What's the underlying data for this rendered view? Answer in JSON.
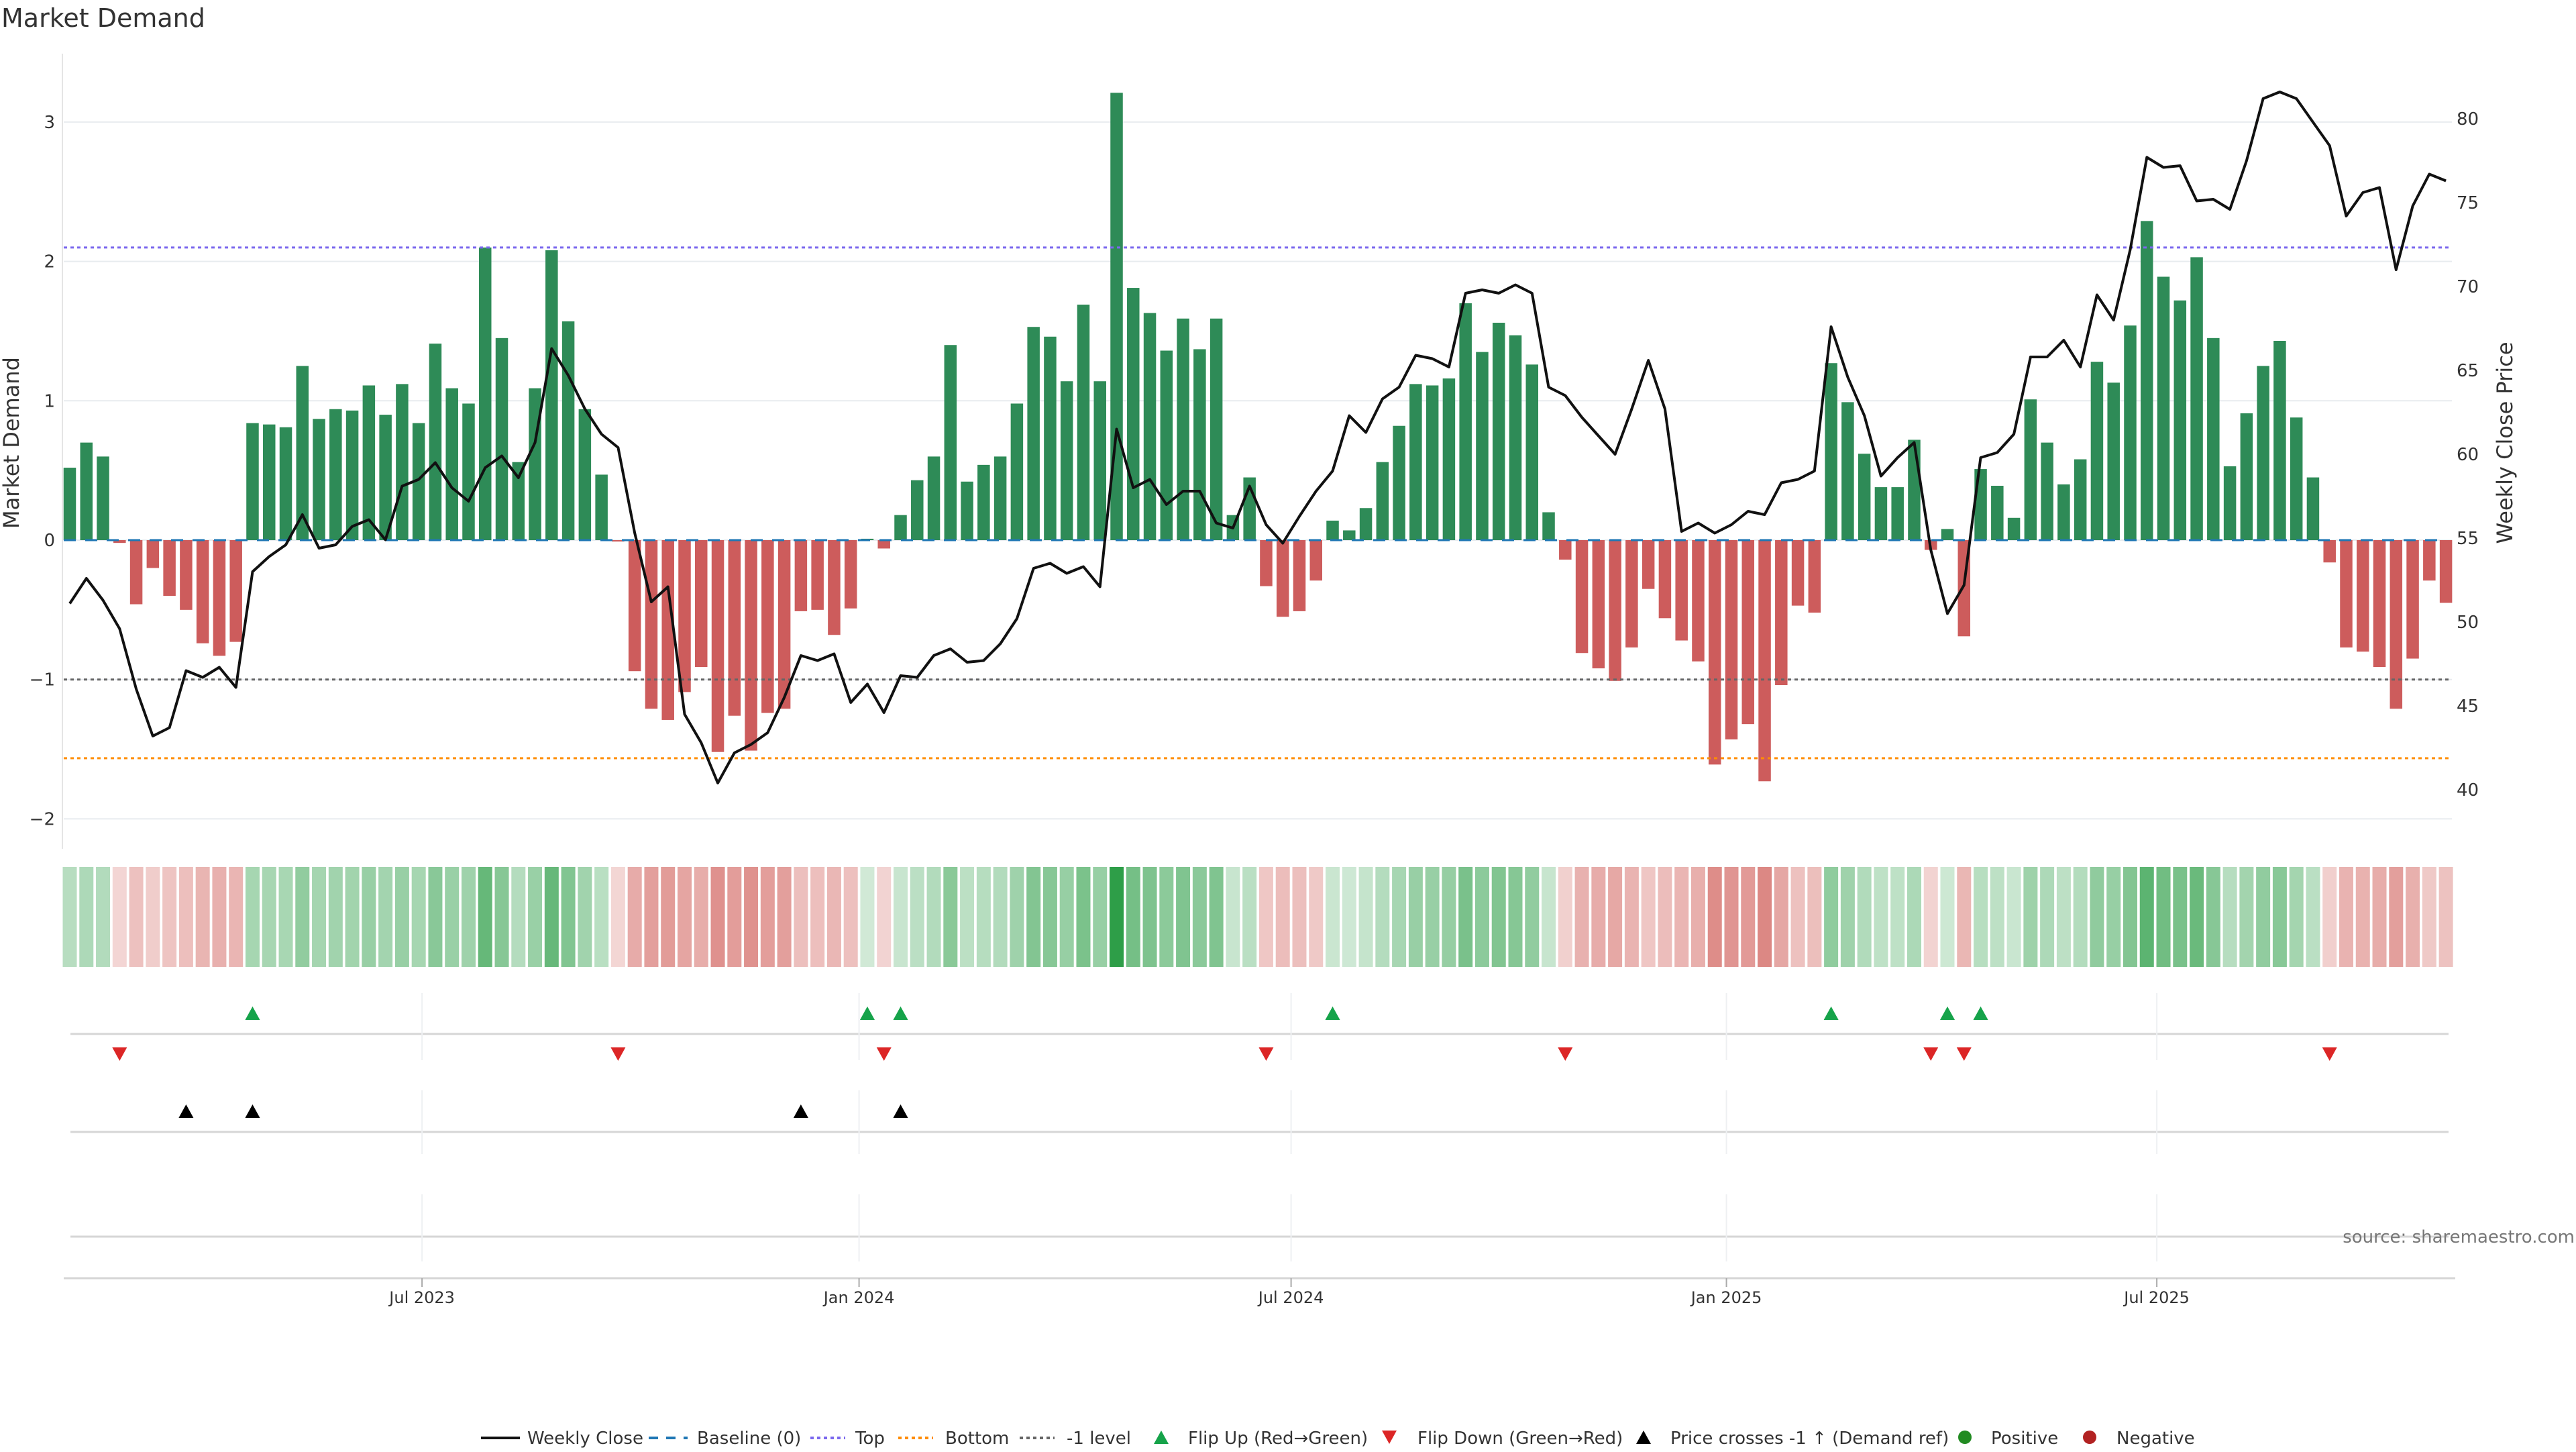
{
  "chart_data": {
    "type": "bar",
    "title": "Market Demand",
    "ylabel": "Market Demand",
    "y2label": "Weekly Close Price",
    "xlabel": "",
    "ylim": [
      -2.35,
      3.35
    ],
    "y2lim": [
      37,
      85
    ],
    "yticks": [
      3,
      2,
      1,
      0,
      -1,
      -2
    ],
    "ytick_labels": [
      "3",
      "2",
      "1",
      "0",
      "−1",
      "−2"
    ],
    "y2ticks": [
      80,
      75,
      70,
      65,
      60,
      55,
      50,
      45,
      40
    ],
    "y2tick_labels": [
      "80",
      "75",
      "70",
      "65",
      "60",
      "55",
      "50",
      "45",
      "40"
    ],
    "xticks": [
      {
        "label": "Jul 2023",
        "week_index": 21.2
      },
      {
        "label": "Jan 2024",
        "week_index": 47.5
      },
      {
        "label": "Jul 2024",
        "week_index": 73.5
      },
      {
        "label": "Jan 2025",
        "week_index": 99.7
      },
      {
        "label": "Jul 2025",
        "week_index": 125.6
      }
    ],
    "grid": true,
    "reference_lines": {
      "baseline": 0,
      "top": 2.1,
      "bottom": -1.565,
      "minus_one": -1
    },
    "colors": {
      "positive": "#2e8b57",
      "negative": "#cd5c5c",
      "price": "#111111",
      "baseline": "#1f77b4",
      "top": "#7b68ee",
      "bottom": "#ff8c00",
      "minus_one": "#666666",
      "flip_up": "#16a34a",
      "flip_down": "#dc2626",
      "cross": "#000000",
      "heat_pos": "#2e9e48",
      "heat_neg": "#c9453f"
    },
    "demand": [
      0.52,
      0.7,
      0.6,
      -0.02,
      -0.46,
      -0.2,
      -0.4,
      -0.5,
      -0.74,
      -0.83,
      -0.73,
      0.84,
      0.83,
      0.81,
      1.25,
      0.87,
      0.94,
      0.93,
      1.11,
      0.9,
      1.12,
      0.84,
      1.41,
      1.09,
      0.98,
      2.1,
      1.45,
      0.56,
      1.09,
      2.08,
      1.57,
      0.94,
      0.47,
      -0.01,
      -0.94,
      -1.21,
      -1.29,
      -1.09,
      -0.91,
      -1.52,
      -1.26,
      -1.51,
      -1.24,
      -1.21,
      -0.51,
      -0.5,
      -0.68,
      -0.49,
      0.01,
      -0.06,
      0.18,
      0.43,
      0.6,
      1.4,
      0.42,
      0.54,
      0.6,
      0.98,
      1.53,
      1.46,
      1.14,
      1.69,
      1.14,
      3.21,
      1.81,
      1.63,
      1.36,
      1.59,
      1.37,
      1.59,
      0.18,
      0.45,
      -0.33,
      -0.55,
      -0.51,
      -0.29,
      0.14,
      0.07,
      0.23,
      0.56,
      0.82,
      1.12,
      1.11,
      1.16,
      1.7,
      1.35,
      1.56,
      1.47,
      1.26,
      0.2,
      -0.14,
      -0.81,
      -0.92,
      -1.01,
      -0.77,
      -0.35,
      -0.56,
      -0.72,
      -0.87,
      -1.61,
      -1.43,
      -1.32,
      -1.73,
      -1.04,
      -0.47,
      -0.52,
      1.27,
      0.99,
      0.62,
      0.38,
      0.38,
      0.72,
      -0.07,
      0.08,
      -0.69,
      0.51,
      0.39,
      0.16,
      1.01,
      0.7,
      0.4,
      0.58,
      1.28,
      1.13,
      1.54,
      2.29,
      1.89,
      1.72,
      2.03,
      1.45,
      0.53,
      0.91,
      1.25,
      1.43,
      0.88,
      0.45,
      -0.16,
      -0.77,
      -0.8,
      -0.91,
      -1.21,
      -0.85,
      -0.29,
      -0.45
    ],
    "weekly_close": [
      51.1,
      52.6,
      51.3,
      49.6,
      46.0,
      43.2,
      43.7,
      47.1,
      46.7,
      47.3,
      46.1,
      53.0,
      53.9,
      54.6,
      56.4,
      54.4,
      54.6,
      55.7,
      56.1,
      54.9,
      58.1,
      58.5,
      59.5,
      58.0,
      57.2,
      59.2,
      59.9,
      58.6,
      60.7,
      66.3,
      64.7,
      62.7,
      61.2,
      60.4,
      55.3,
      51.2,
      52.1,
      44.5,
      42.8,
      40.4,
      42.2,
      42.7,
      43.4,
      45.5,
      48.0,
      47.7,
      48.1,
      45.2,
      46.3,
      44.6,
      46.8,
      46.7,
      48.0,
      48.4,
      47.6,
      47.7,
      48.7,
      50.2,
      53.2,
      53.5,
      52.9,
      53.3,
      52.1,
      61.5,
      58.0,
      58.5,
      57.0,
      57.8,
      57.8,
      55.9,
      55.6,
      58.1,
      55.8,
      54.7,
      56.3,
      57.8,
      59.0,
      62.3,
      61.3,
      63.3,
      64.0,
      65.9,
      65.7,
      65.2,
      69.6,
      69.8,
      69.6,
      70.1,
      69.6,
      64.0,
      63.5,
      62.2,
      61.1,
      60.0,
      62.7,
      65.6,
      62.7,
      55.4,
      55.9,
      55.3,
      55.8,
      56.6,
      56.4,
      58.3,
      58.5,
      59.0,
      67.6,
      64.6,
      62.3,
      58.7,
      59.8,
      60.7,
      54.3,
      50.5,
      52.2,
      59.8,
      60.1,
      61.2,
      65.8,
      65.8,
      66.8,
      65.2,
      69.5,
      68.0,
      72.2,
      77.7,
      77.1,
      77.2,
      75.1,
      75.2,
      74.6,
      77.5,
      81.2,
      81.6,
      81.2,
      79.8,
      78.4,
      74.2,
      75.6,
      75.9,
      71.0,
      74.8,
      76.7,
      76.3
    ],
    "flip_up_weeks": [
      11,
      48,
      50,
      76,
      106,
      113,
      115
    ],
    "flip_down_weeks": [
      3,
      33,
      49,
      72,
      90,
      112,
      114,
      136
    ],
    "price_cross_weeks": [
      7,
      11,
      44,
      50
    ],
    "legend": {
      "placement": "bottom-center",
      "items": [
        "Weekly Close",
        "Baseline (0)",
        "Top",
        "Bottom",
        "-1 level",
        "Flip Up (Red→Green)",
        "Flip Down (Green→Red)",
        "Price crosses -1 ↑ (Demand ref)",
        "Positive",
        "Negative"
      ]
    },
    "source": "source: sharemaestro.com"
  }
}
